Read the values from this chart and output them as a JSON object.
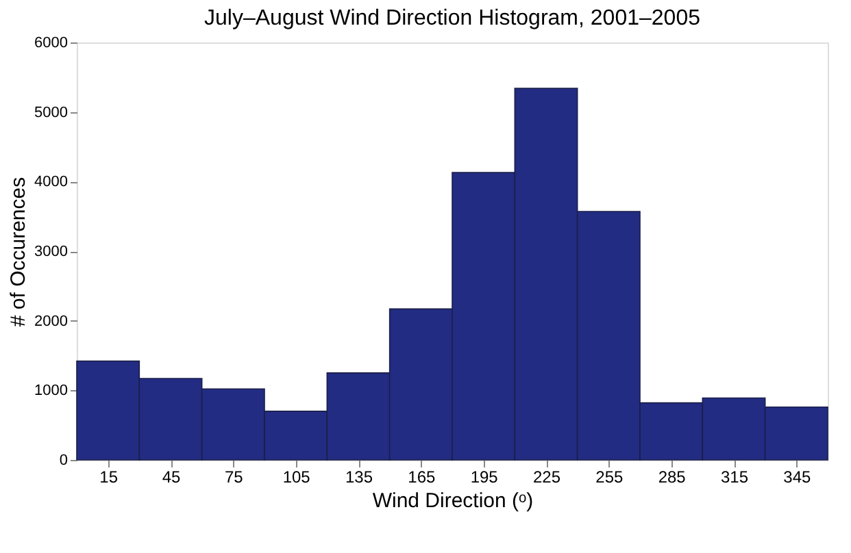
{
  "chart_data": {
    "type": "histogram",
    "title": "July–August Wind Direction Histogram, 2001–2005",
    "xlabel": "Wind Direction (ᵒ)",
    "ylabel": "# of Occurences",
    "bins": [
      0,
      30,
      60,
      90,
      120,
      150,
      180,
      210,
      240,
      270,
      300,
      330,
      360
    ],
    "values": [
      1420,
      1170,
      1020,
      700,
      1250,
      2170,
      4130,
      5340,
      3570,
      820,
      890,
      760
    ],
    "color": "#232c83",
    "xlim": [
      0,
      360
    ],
    "xticks": [
      15,
      45,
      75,
      105,
      135,
      165,
      195,
      225,
      255,
      285,
      315,
      345
    ],
    "ylim": [
      0,
      6000
    ],
    "yticks": [
      0,
      1000,
      2000,
      3000,
      4000,
      5000,
      6000
    ],
    "grid": false
  }
}
